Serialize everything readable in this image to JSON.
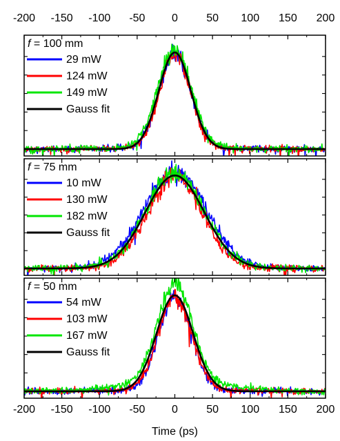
{
  "chart_data": {
    "type": "line",
    "xlabel": "Time (ps)",
    "xlim": [
      -200,
      200
    ],
    "xticks": [
      -200,
      -150,
      -100,
      -50,
      0,
      50,
      100,
      150,
      200
    ],
    "ticks_top_labeled": true,
    "ticks_bottom_labeled": true,
    "y_tick_labels_shown": false,
    "grid": false,
    "legend_position": "top-left",
    "colors": {
      "blue": "#0000ff",
      "red": "#ff0000",
      "green": "#00e600",
      "black": "#000000"
    },
    "panels": [
      {
        "legend_title_var": "f",
        "legend_title_rest": " = 100 mm",
        "gauss_fit_fwhm_ps": 50,
        "ylim": [
          0,
          1.15
        ],
        "series": [
          {
            "name": "29 mW",
            "color": "#0000ff",
            "peak": 0.98,
            "fwhm_ps": 49,
            "noise": 0.045
          },
          {
            "name": "124 mW",
            "color": "#ff0000",
            "peak": 0.98,
            "fwhm_ps": 47,
            "noise": 0.045
          },
          {
            "name": "149 mW",
            "color": "#00e600",
            "peak": 1.02,
            "fwhm_ps": 52,
            "noise": 0.05
          },
          {
            "name": "Gauss fit",
            "color": "#000000",
            "peak": 1.0,
            "fwhm_ps": 50,
            "noise": 0
          }
        ]
      },
      {
        "legend_title_var": "f",
        "legend_title_rest": " = 75 mm",
        "gauss_fit_fwhm_ps": 92,
        "ylim": [
          0,
          1.15
        ],
        "series": [
          {
            "name": "10 mW",
            "color": "#0000ff",
            "peak": 1.02,
            "fwhm_ps": 98,
            "noise": 0.05
          },
          {
            "name": "130 mW",
            "color": "#ff0000",
            "peak": 0.98,
            "fwhm_ps": 85,
            "noise": 0.05
          },
          {
            "name": "182 mW",
            "color": "#00e600",
            "peak": 1.0,
            "fwhm_ps": 92,
            "noise": 0.05
          },
          {
            "name": "Gauss fit",
            "color": "#000000",
            "peak": 1.0,
            "fwhm_ps": 92,
            "noise": 0
          }
        ]
      },
      {
        "legend_title_var": "f",
        "legend_title_rest": " = 50 mm",
        "gauss_fit_fwhm_ps": 57,
        "ylim": [
          0,
          1.15
        ],
        "series": [
          {
            "name": "54 mW",
            "color": "#0000ff",
            "peak": 0.98,
            "fwhm_ps": 50,
            "noise": 0.045
          },
          {
            "name": "103 mW",
            "color": "#ff0000",
            "peak": 0.97,
            "fwhm_ps": 52,
            "noise": 0.045
          },
          {
            "name": "167 mW",
            "color": "#00e600",
            "peak": 1.03,
            "fwhm_ps": 55,
            "noise": 0.05,
            "pedestal": 0.09
          },
          {
            "name": "Gauss fit",
            "color": "#000000",
            "peak": 1.0,
            "fwhm_ps": 57,
            "noise": 0
          }
        ]
      }
    ]
  }
}
